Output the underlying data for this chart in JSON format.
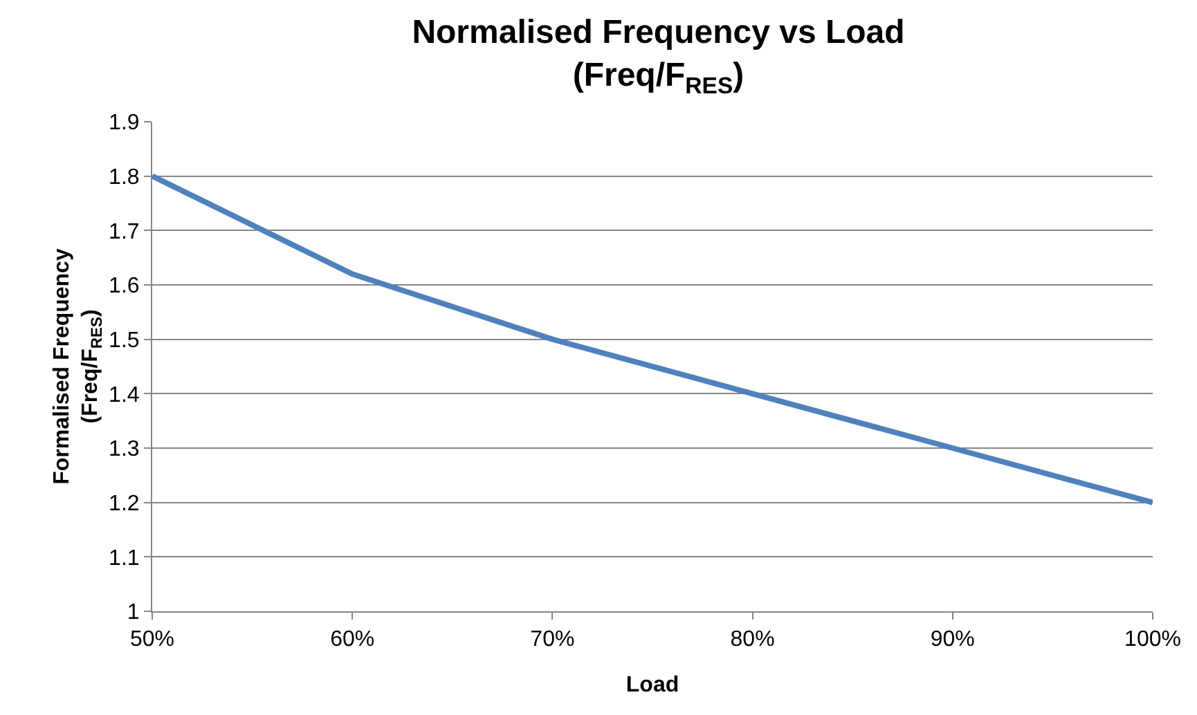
{
  "chart_data": {
    "type": "line",
    "title": "Normalised Frequency vs Load\n(Freq/F$_{RES}$)",
    "xlabel": "Load",
    "ylabel": "Formalised Frequency\n(Freq/F$_{RES}$)",
    "categories": [
      "50%",
      "60%",
      "70%",
      "80%",
      "90%",
      "100%"
    ],
    "series": [
      {
        "color": "#4f81bd",
        "values": [
          1.8,
          1.62,
          1.5,
          1.4,
          1.3,
          1.2
        ]
      }
    ],
    "ylim": [
      1,
      1.9
    ],
    "yticks": [
      1,
      1.1,
      1.2,
      1.3,
      1.4,
      1.5,
      1.6,
      1.7,
      1.8,
      1.9
    ],
    "grid": "y",
    "marker": "none",
    "line_style": "solid"
  }
}
